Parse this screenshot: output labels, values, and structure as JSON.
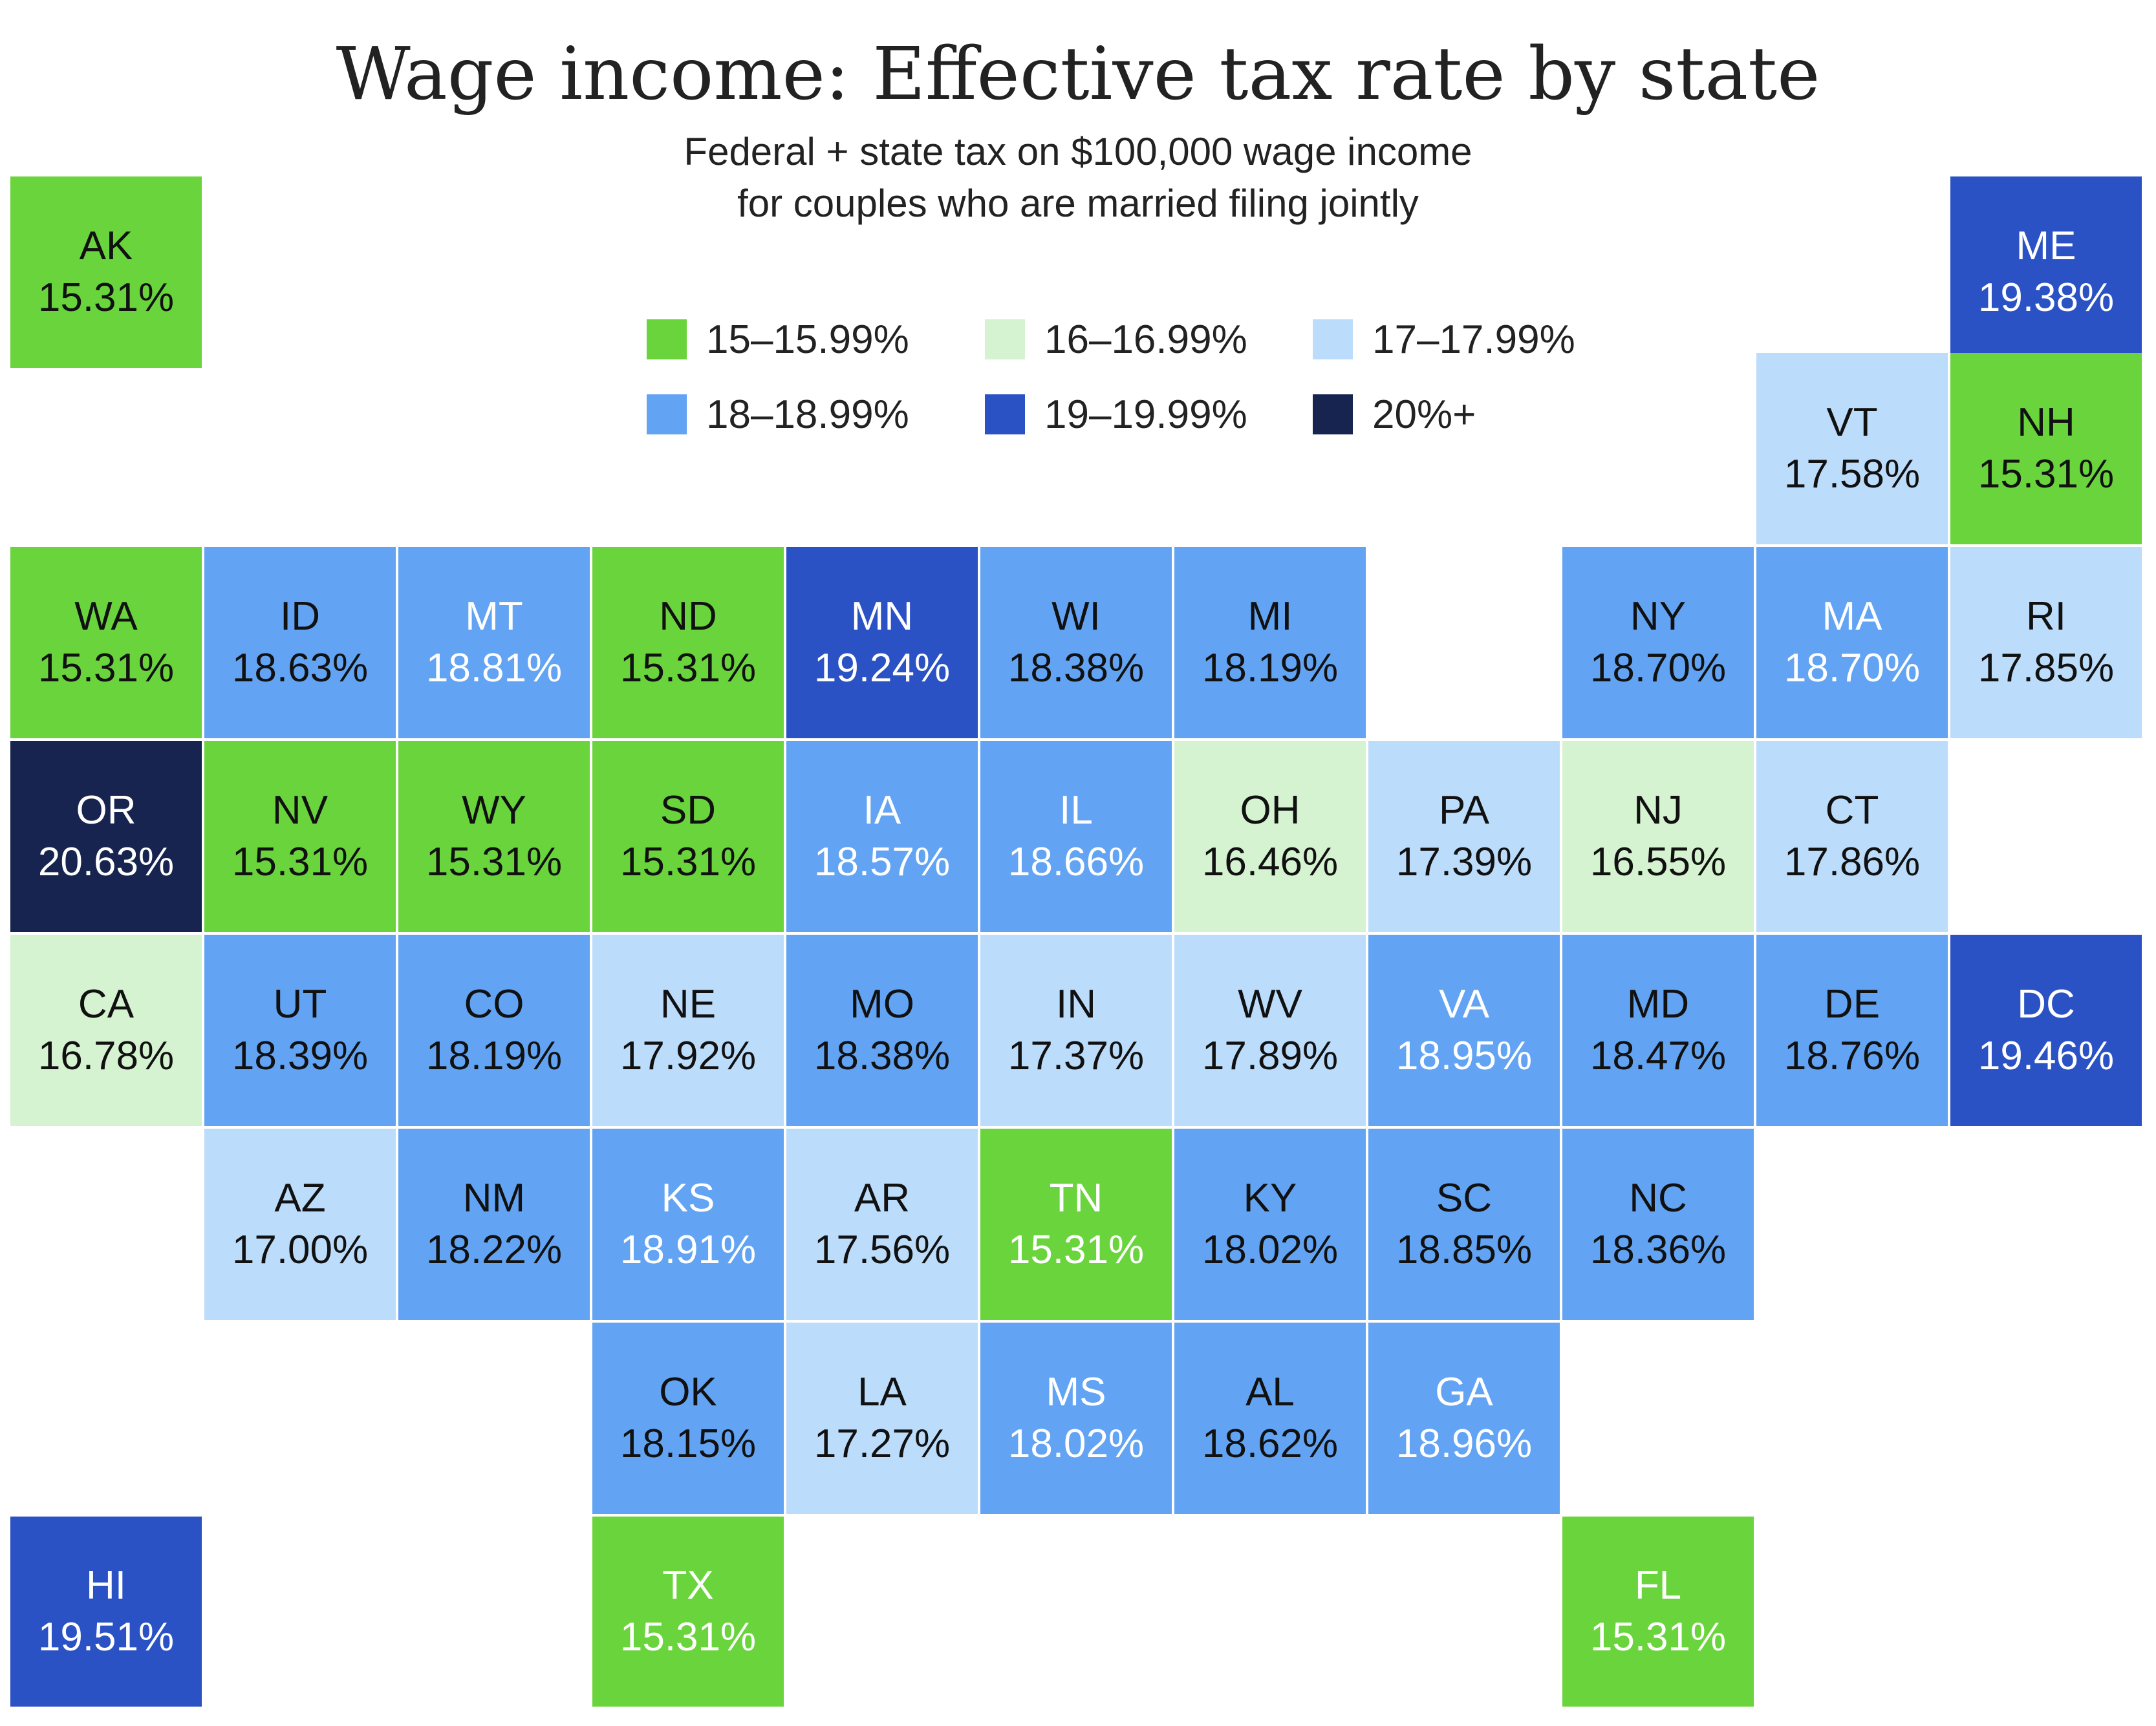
{
  "title": "Wage income: Effective tax rate by state",
  "subtitle_lines": [
    "Federal + state tax on $100,000 wage income",
    "for couples who are married filing jointly"
  ],
  "colors": {
    "15-15.99": "#6ad43c",
    "16-16.99": "#d5f3d0",
    "17-17.99": "#bcdcfb",
    "18-18.99": "#62a4f3",
    "19-19.99": "#2a52c4",
    "20+": "#16244f"
  },
  "legend": [
    {
      "label": "15–15.99%",
      "key": "15-15.99"
    },
    {
      "label": "16–16.99%",
      "key": "16-16.99"
    },
    {
      "label": "17–17.99%",
      "key": "17-17.99"
    },
    {
      "label": "18–18.99%",
      "key": "18-18.99"
    },
    {
      "label": "19–19.99%",
      "key": "19-19.99"
    },
    {
      "label": "20%+",
      "key": "20+"
    }
  ],
  "chart_data": {
    "type": "tile-map",
    "title": "Wage income: Effective tax rate by state",
    "value_unit": "%",
    "states": [
      {
        "abbr": "AK",
        "rate": "15.31%",
        "row": 0,
        "col": 0,
        "bin": "15-15.99"
      },
      {
        "abbr": "ME",
        "rate": "19.38%",
        "row": 0,
        "col": 10,
        "bin": "19-19.99"
      },
      {
        "abbr": "VT",
        "rate": "17.58%",
        "row": 1,
        "col": 9,
        "bin": "17-17.99"
      },
      {
        "abbr": "NH",
        "rate": "15.31%",
        "row": 1,
        "col": 10,
        "bin": "15-15.99"
      },
      {
        "abbr": "WA",
        "rate": "15.31%",
        "row": 2,
        "col": 0,
        "bin": "15-15.99"
      },
      {
        "abbr": "ID",
        "rate": "18.63%",
        "row": 2,
        "col": 1,
        "bin": "18-18.99"
      },
      {
        "abbr": "MT",
        "rate": "18.81%",
        "row": 2,
        "col": 2,
        "bin": "18-18.99",
        "light_text": true
      },
      {
        "abbr": "ND",
        "rate": "15.31%",
        "row": 2,
        "col": 3,
        "bin": "15-15.99"
      },
      {
        "abbr": "MN",
        "rate": "19.24%",
        "row": 2,
        "col": 4,
        "bin": "19-19.99"
      },
      {
        "abbr": "WI",
        "rate": "18.38%",
        "row": 2,
        "col": 5,
        "bin": "18-18.99"
      },
      {
        "abbr": "MI",
        "rate": "18.19%",
        "row": 2,
        "col": 6,
        "bin": "18-18.99"
      },
      {
        "abbr": "NY",
        "rate": "18.70%",
        "row": 2,
        "col": 8,
        "bin": "18-18.99"
      },
      {
        "abbr": "MA",
        "rate": "18.70%",
        "row": 2,
        "col": 9,
        "bin": "18-18.99",
        "light_text": true
      },
      {
        "abbr": "RI",
        "rate": "17.85%",
        "row": 2,
        "col": 10,
        "bin": "17-17.99"
      },
      {
        "abbr": "OR",
        "rate": "20.63%",
        "row": 3,
        "col": 0,
        "bin": "20+"
      },
      {
        "abbr": "NV",
        "rate": "15.31%",
        "row": 3,
        "col": 1,
        "bin": "15-15.99"
      },
      {
        "abbr": "WY",
        "rate": "15.31%",
        "row": 3,
        "col": 2,
        "bin": "15-15.99"
      },
      {
        "abbr": "SD",
        "rate": "15.31%",
        "row": 3,
        "col": 3,
        "bin": "15-15.99"
      },
      {
        "abbr": "IA",
        "rate": "18.57%",
        "row": 3,
        "col": 4,
        "bin": "18-18.99",
        "light_text": true
      },
      {
        "abbr": "IL",
        "rate": "18.66%",
        "row": 3,
        "col": 5,
        "bin": "18-18.99",
        "light_text": true
      },
      {
        "abbr": "OH",
        "rate": "16.46%",
        "row": 3,
        "col": 6,
        "bin": "16-16.99"
      },
      {
        "abbr": "PA",
        "rate": "17.39%",
        "row": 3,
        "col": 7,
        "bin": "17-17.99"
      },
      {
        "abbr": "NJ",
        "rate": "16.55%",
        "row": 3,
        "col": 8,
        "bin": "16-16.99"
      },
      {
        "abbr": "CT",
        "rate": "17.86%",
        "row": 3,
        "col": 9,
        "bin": "17-17.99"
      },
      {
        "abbr": "CA",
        "rate": "16.78%",
        "row": 4,
        "col": 0,
        "bin": "16-16.99"
      },
      {
        "abbr": "UT",
        "rate": "18.39%",
        "row": 4,
        "col": 1,
        "bin": "18-18.99"
      },
      {
        "abbr": "CO",
        "rate": "18.19%",
        "row": 4,
        "col": 2,
        "bin": "18-18.99"
      },
      {
        "abbr": "NE",
        "rate": "17.92%",
        "row": 4,
        "col": 3,
        "bin": "17-17.99"
      },
      {
        "abbr": "MO",
        "rate": "18.38%",
        "row": 4,
        "col": 4,
        "bin": "18-18.99"
      },
      {
        "abbr": "IN",
        "rate": "17.37%",
        "row": 4,
        "col": 5,
        "bin": "17-17.99"
      },
      {
        "abbr": "WV",
        "rate": "17.89%",
        "row": 4,
        "col": 6,
        "bin": "17-17.99"
      },
      {
        "abbr": "VA",
        "rate": "18.95%",
        "row": 4,
        "col": 7,
        "bin": "18-18.99",
        "light_text": true
      },
      {
        "abbr": "MD",
        "rate": "18.47%",
        "row": 4,
        "col": 8,
        "bin": "18-18.99"
      },
      {
        "abbr": "DE",
        "rate": "18.76%",
        "row": 4,
        "col": 9,
        "bin": "18-18.99"
      },
      {
        "abbr": "DC",
        "rate": "19.46%",
        "row": 4,
        "col": 10,
        "bin": "19-19.99"
      },
      {
        "abbr": "AZ",
        "rate": "17.00%",
        "row": 5,
        "col": 1,
        "bin": "17-17.99"
      },
      {
        "abbr": "NM",
        "rate": "18.22%",
        "row": 5,
        "col": 2,
        "bin": "18-18.99"
      },
      {
        "abbr": "KS",
        "rate": "18.91%",
        "row": 5,
        "col": 3,
        "bin": "18-18.99",
        "light_text": true
      },
      {
        "abbr": "AR",
        "rate": "17.56%",
        "row": 5,
        "col": 4,
        "bin": "17-17.99"
      },
      {
        "abbr": "TN",
        "rate": "15.31%",
        "row": 5,
        "col": 5,
        "bin": "15-15.99",
        "light_text": true
      },
      {
        "abbr": "KY",
        "rate": "18.02%",
        "row": 5,
        "col": 6,
        "bin": "18-18.99"
      },
      {
        "abbr": "SC",
        "rate": "18.85%",
        "row": 5,
        "col": 7,
        "bin": "18-18.99"
      },
      {
        "abbr": "NC",
        "rate": "18.36%",
        "row": 5,
        "col": 8,
        "bin": "18-18.99"
      },
      {
        "abbr": "OK",
        "rate": "18.15%",
        "row": 6,
        "col": 3,
        "bin": "18-18.99"
      },
      {
        "abbr": "LA",
        "rate": "17.27%",
        "row": 6,
        "col": 4,
        "bin": "17-17.99"
      },
      {
        "abbr": "MS",
        "rate": "18.02%",
        "row": 6,
        "col": 5,
        "bin": "18-18.99",
        "light_text": true
      },
      {
        "abbr": "AL",
        "rate": "18.62%",
        "row": 6,
        "col": 6,
        "bin": "18-18.99"
      },
      {
        "abbr": "GA",
        "rate": "18.96%",
        "row": 6,
        "col": 7,
        "bin": "18-18.99",
        "light_text": true
      },
      {
        "abbr": "HI",
        "rate": "19.51%",
        "row": 7,
        "col": 0,
        "bin": "19-19.99"
      },
      {
        "abbr": "TX",
        "rate": "15.31%",
        "row": 7,
        "col": 3,
        "bin": "15-15.99",
        "light_text": true
      },
      {
        "abbr": "FL",
        "rate": "15.31%",
        "row": 7,
        "col": 8,
        "bin": "15-15.99",
        "light_text": true
      }
    ]
  }
}
